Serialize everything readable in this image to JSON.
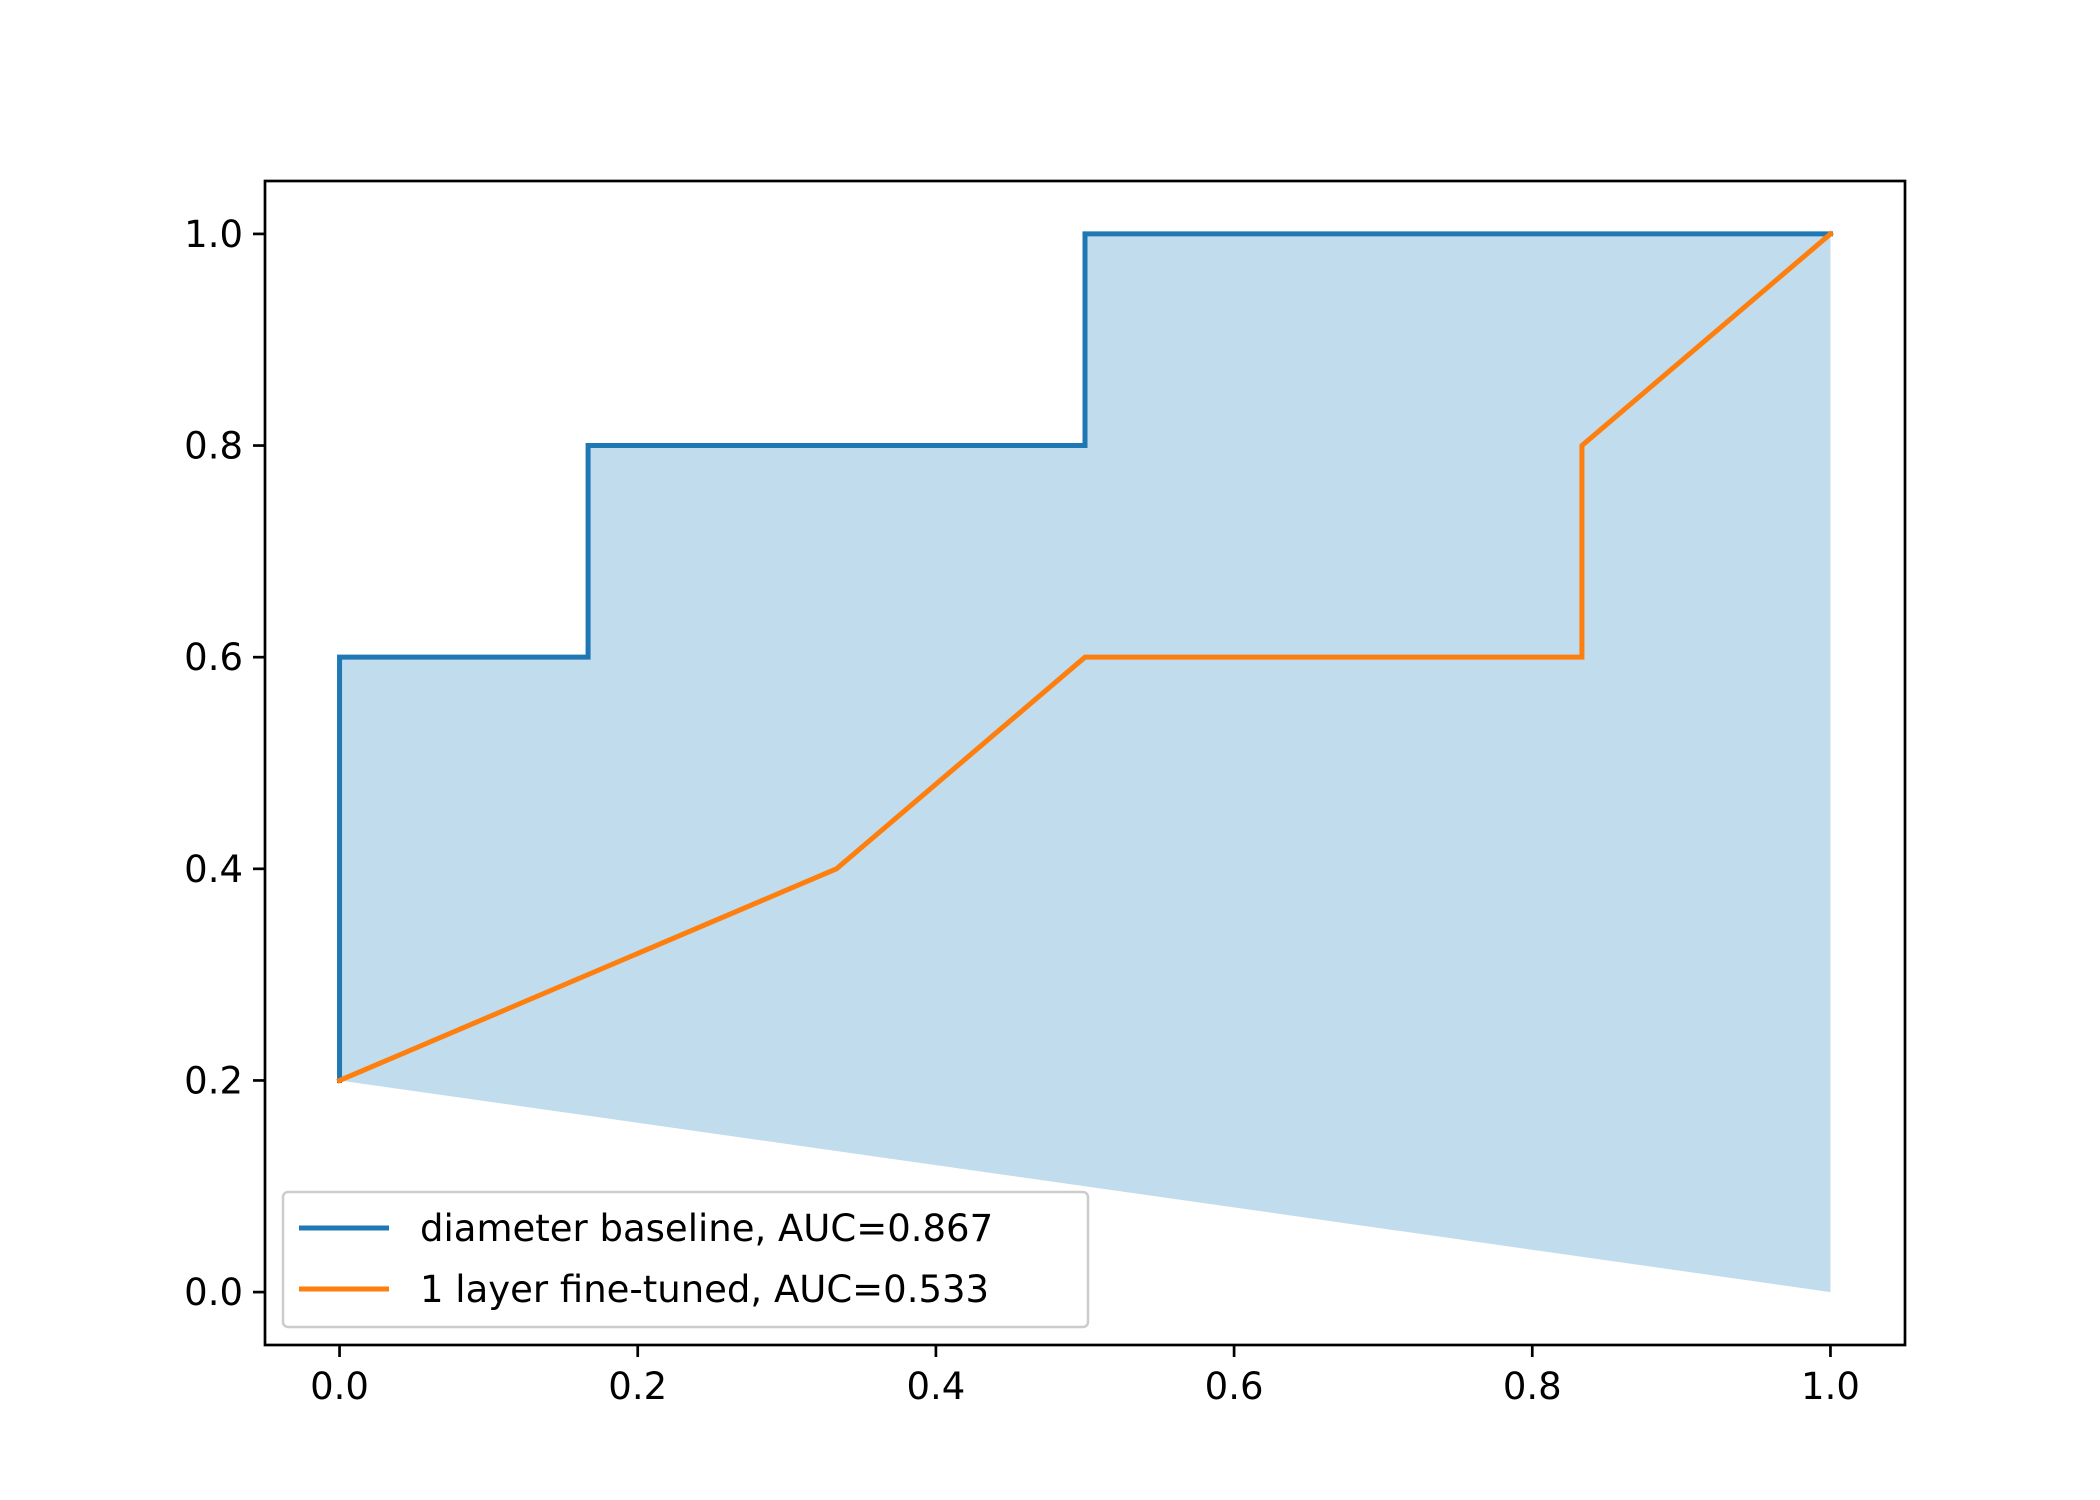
{
  "chart_data": {
    "type": "line",
    "title": "",
    "xlabel": "",
    "ylabel": "",
    "xlim": [
      -0.05,
      1.05
    ],
    "ylim": [
      -0.05,
      1.05
    ],
    "xticks": [
      0.0,
      0.2,
      0.4,
      0.6,
      0.8,
      1.0
    ],
    "xtick_labels": [
      "0.0",
      "0.2",
      "0.4",
      "0.6",
      "0.8",
      "1.0"
    ],
    "yticks": [
      0.0,
      0.2,
      0.4,
      0.6,
      0.8,
      1.0
    ],
    "ytick_labels": [
      "0.0",
      "0.2",
      "0.4",
      "0.6",
      "0.8",
      "1.0"
    ],
    "grid": false,
    "legend_position": "lower-left",
    "series": [
      {
        "name": "diameter baseline, AUC=0.867",
        "color": "#1f77b4",
        "x": [
          0.0,
          0.0,
          0.1667,
          0.1667,
          0.5,
          0.5,
          1.0
        ],
        "y": [
          0.2,
          0.6,
          0.6,
          0.8,
          0.8,
          1.0,
          1.0
        ]
      },
      {
        "name": "1 layer fine-tuned, AUC=0.533",
        "color": "#ff7f0e",
        "x": [
          0.0,
          0.3333,
          0.5,
          0.8333,
          0.8333,
          1.0
        ],
        "y": [
          0.2,
          0.4,
          0.6,
          0.6,
          0.8,
          1.0
        ]
      }
    ],
    "fill": {
      "color": "#c0dced",
      "x": [
        0.0,
        0.0,
        0.1667,
        0.1667,
        0.5,
        0.5,
        1.0,
        1.0
      ],
      "y": [
        0.2,
        0.6,
        0.6,
        0.8,
        0.8,
        1.0,
        1.0,
        0.0
      ]
    }
  }
}
